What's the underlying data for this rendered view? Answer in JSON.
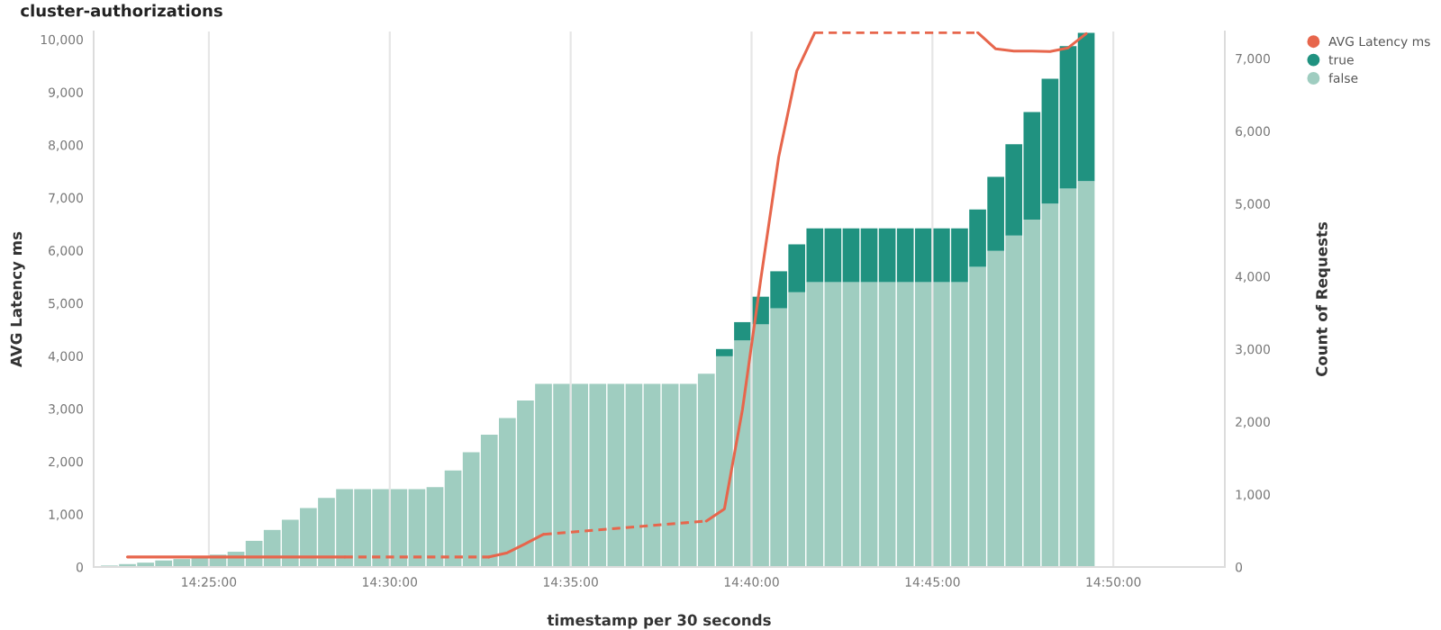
{
  "chart_data": {
    "type": "bar",
    "title": "cluster-authorizations",
    "xlabel": "timestamp per 30 seconds",
    "ylabel": "AVG Latency ms",
    "y2label": "Count of Requests",
    "stacked": true,
    "grid": "x",
    "legend": "top right",
    "x": [
      14.370833,
      14.379167,
      14.3875,
      14.395833,
      14.404167,
      14.4125,
      14.420833,
      14.429167,
      14.4375,
      14.445833,
      14.454167,
      14.4625,
      14.470833,
      14.479167,
      14.4875,
      14.495833,
      14.504167,
      14.5125,
      14.520833,
      14.529167,
      14.5375,
      14.545833,
      14.554167,
      14.5625,
      14.570833,
      14.579167,
      14.5875,
      14.595833,
      14.604167,
      14.6125,
      14.620833,
      14.629167,
      14.6375,
      14.645833,
      14.654167,
      14.6625,
      14.670833,
      14.679167,
      14.6875,
      14.695833,
      14.704167,
      14.7125,
      14.720833,
      14.729167,
      14.7375,
      14.745833,
      14.754167,
      14.7625,
      14.770833,
      14.779167,
      14.7875,
      14.795833,
      14.804167,
      14.8125,
      14.820833
    ],
    "xlim": [
      14.3636,
      14.8847
    ],
    "xticks": [
      {
        "value": 14.416667,
        "label": "14:25:00"
      },
      {
        "value": 14.5,
        "label": "14:30:00"
      },
      {
        "value": 14.583333,
        "label": "14:35:00"
      },
      {
        "value": 14.666667,
        "label": "14:40:00"
      },
      {
        "value": 14.75,
        "label": "14:45:00"
      },
      {
        "value": 14.833333,
        "label": "14:50:00"
      }
    ],
    "ylim": [
      0,
      10150
    ],
    "yticks": [
      0,
      {
        "value": 1000,
        "label": "1,000"
      },
      {
        "value": 2000,
        "label": "2,000"
      },
      {
        "value": 3000,
        "label": "3,000"
      },
      {
        "value": 4000,
        "label": "4,000"
      },
      {
        "value": 5000,
        "label": "5,000"
      },
      {
        "value": 6000,
        "label": "6,000"
      },
      {
        "value": 7000,
        "label": "7,000"
      },
      {
        "value": 8000,
        "label": "8,000"
      },
      {
        "value": 9000,
        "label": "9,000"
      },
      {
        "value": 10000,
        "label": "10,000"
      }
    ],
    "y2lim": [
      0,
      7370
    ],
    "y2ticks": [
      0,
      {
        "value": 1000,
        "label": "1,000"
      },
      {
        "value": 2000,
        "label": "2,000"
      },
      {
        "value": 3000,
        "label": "3,000"
      },
      {
        "value": 4000,
        "label": "4,000"
      },
      {
        "value": 5000,
        "label": "5,000"
      },
      {
        "value": 6000,
        "label": "6,000"
      },
      {
        "value": 7000,
        "label": "7,000"
      }
    ],
    "series": [
      {
        "name": "false",
        "axis": "y2",
        "color": "#9fcdc0",
        "values": [
          20,
          40,
          60,
          90,
          110,
          140,
          170,
          210,
          360,
          510,
          650,
          810,
          950,
          1070,
          1070,
          1070,
          1070,
          1070,
          1100,
          1330,
          1580,
          1820,
          2050,
          2290,
          2520,
          2520,
          2520,
          2520,
          2520,
          2520,
          2520,
          2520,
          2520,
          2660,
          2900,
          3120,
          3340,
          3560,
          3780,
          3920,
          3920,
          3920,
          3920,
          3920,
          3920,
          3920,
          3920,
          3920,
          4130,
          4350,
          4560,
          4780,
          5000,
          5210,
          5310
        ]
      },
      {
        "name": "true",
        "axis": "y2",
        "color": "#209280",
        "values": [
          null,
          null,
          null,
          null,
          null,
          null,
          null,
          null,
          null,
          null,
          null,
          null,
          null,
          null,
          null,
          null,
          null,
          null,
          null,
          null,
          null,
          null,
          null,
          null,
          null,
          null,
          null,
          null,
          null,
          null,
          null,
          null,
          null,
          null,
          100,
          250,
          380,
          510,
          660,
          740,
          740,
          740,
          740,
          740,
          740,
          740,
          740,
          740,
          790,
          1020,
          1260,
          1480,
          1720,
          1960,
          2040
        ]
      },
      {
        "name": "AVG Latency ms",
        "type": "line",
        "color": "#e7664c",
        "line_style": "solid",
        "values": [
          null,
          190,
          190,
          190,
          190,
          190,
          190,
          190,
          190,
          190,
          190,
          190,
          190,
          190,
          null,
          null,
          null,
          null,
          null,
          null,
          null,
          190,
          270,
          440,
          620,
          null,
          null,
          null,
          null,
          null,
          null,
          null,
          null,
          870,
          1100,
          2990,
          5430,
          7770,
          9400,
          10130,
          null,
          null,
          null,
          null,
          null,
          null,
          null,
          null,
          10130,
          9820,
          9780,
          9780,
          9770,
          9840,
          10110
        ]
      }
    ]
  }
}
